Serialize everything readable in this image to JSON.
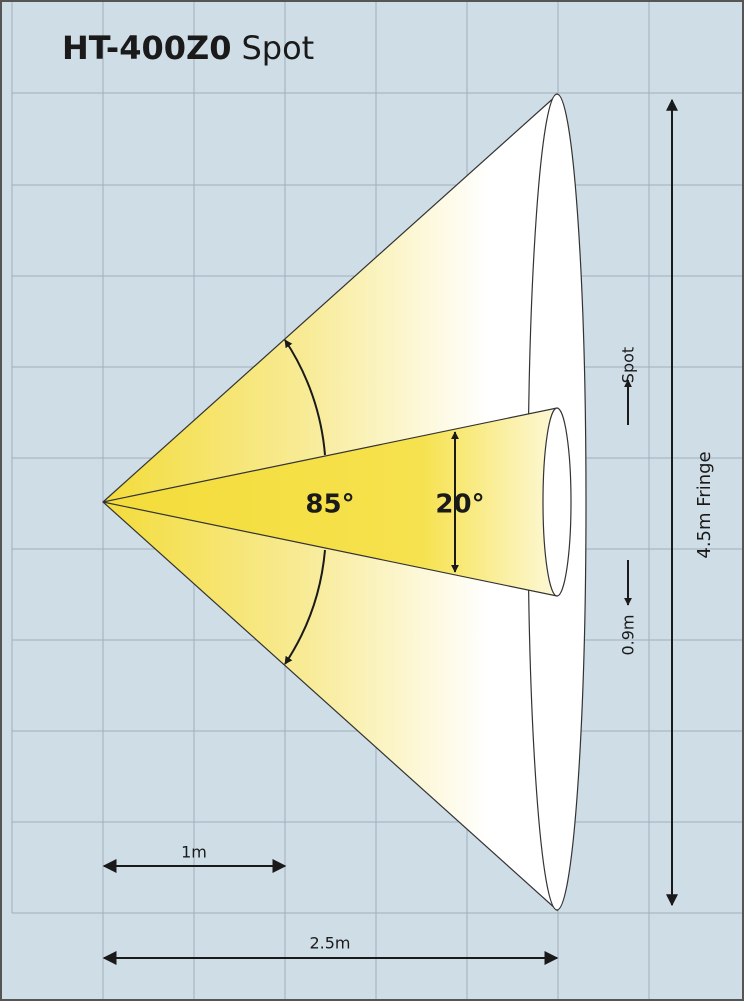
{
  "title": {
    "model": "HT-400Z0",
    "mode": "Spot"
  },
  "angles": {
    "outer": "85°",
    "inner": "20°"
  },
  "dimensions": {
    "width_1": "1m",
    "width_2": "2.5m",
    "spot": "Spot",
    "spot_size": "0.9m",
    "fringe": "4.5m Fringe"
  }
}
